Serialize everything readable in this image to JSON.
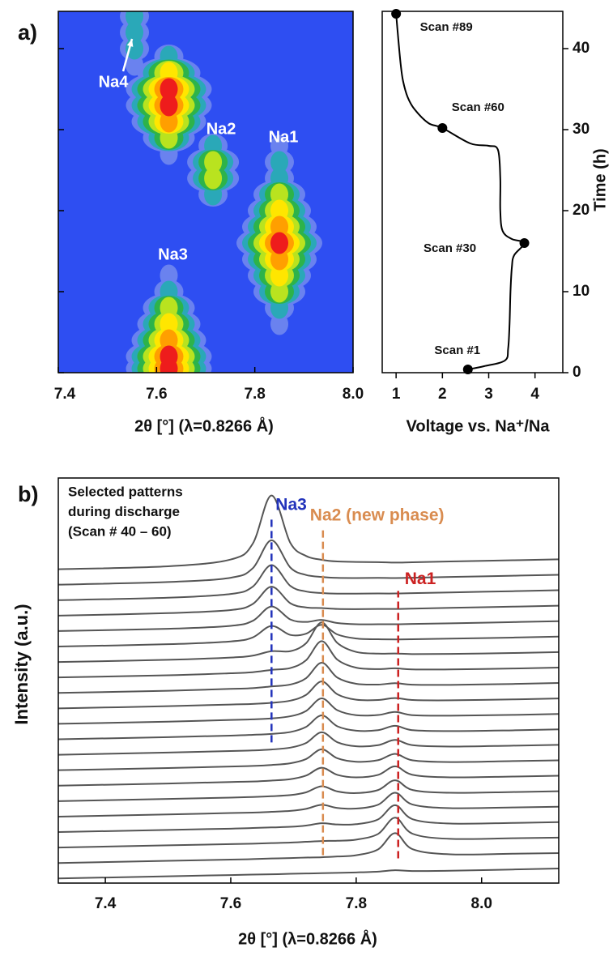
{
  "chart_data": [
    {
      "type": "contour",
      "panel_label": "a)",
      "xlabel": "2θ [°] (λ=0.8266 Å)",
      "xlim": [
        7.4,
        8.0
      ],
      "xticks": [
        7.4,
        7.6,
        7.8,
        {
          "value": 8,
          "label": "8.0"
        }
      ],
      "ylim": [
        0,
        44.6
      ],
      "yticks": [
        0,
        10,
        20,
        30,
        40
      ],
      "background": "#2e4ef2",
      "colors": [
        "#6a82ef",
        "#2aa8b8",
        "#2db34a",
        "#b9e31f",
        "#ffe600",
        "#ff9f00",
        "#ee1c1c"
      ],
      "series": [
        {
          "name": "Na3",
          "x": [
            7.625,
            7.625,
            7.625,
            7.625,
            7.625,
            7.625,
            7.625
          ],
          "y": [
            0.5,
            2,
            4,
            6,
            8,
            10,
            12
          ],
          "values": [
            1,
            1,
            0.9,
            0.7,
            0.5,
            0.35,
            0.15
          ]
        },
        {
          "name": null,
          "x": [
            7.625,
            7.625,
            7.625,
            7.625,
            7.625,
            7.625,
            7.625
          ],
          "y": [
            27,
            29,
            31,
            33,
            35,
            37,
            39
          ],
          "values": [
            0.2,
            0.6,
            0.9,
            1,
            0.95,
            0.7,
            0.3
          ]
        },
        {
          "name": "Na2",
          "x": [
            7.715,
            7.715,
            7.715,
            7.715
          ],
          "y": [
            22,
            24,
            26,
            28
          ],
          "values": [
            0.3,
            0.55,
            0.6,
            0.3
          ]
        },
        {
          "name": "Na1",
          "x": [
            7.85,
            7.85,
            7.85,
            7.85,
            7.85,
            7.85,
            7.85,
            7.85,
            7.85,
            7.85,
            7.85,
            7.85
          ],
          "y": [
            6,
            8,
            10,
            12,
            14,
            16,
            18,
            20,
            22,
            24,
            26,
            28
          ],
          "values": [
            0.15,
            0.35,
            0.5,
            0.65,
            0.85,
            1,
            0.9,
            0.7,
            0.5,
            0.35,
            0.25,
            0.15
          ]
        },
        {
          "name": "Na4",
          "x": [
            7.555,
            7.555,
            7.555,
            7.555
          ],
          "y": [
            38,
            40,
            42,
            44
          ],
          "values": [
            0.1,
            0.25,
            0.3,
            0.3
          ]
        }
      ]
    },
    {
      "type": "line",
      "xlabel": "Voltage vs. Na⁺/Na",
      "ylabel": "Time (h)",
      "xlim": [
        0.7,
        4.6
      ],
      "xticks": [
        1,
        2,
        3,
        4
      ],
      "ylim": [
        0,
        44.6
      ],
      "yticks": [
        0,
        10,
        20,
        30,
        40
      ],
      "color": "#000000",
      "x": [
        2.55,
        2.9,
        3.35,
        3.42,
        3.45,
        3.47,
        3.5,
        3.55,
        3.77,
        3.5,
        3.3,
        3.25,
        3.25,
        3.2,
        3.0,
        2.6,
        2.0,
        1.7,
        1.4,
        1.25,
        1.15,
        1.1,
        1.05,
        1.0
      ],
      "y": [
        0.4,
        0.8,
        1.5,
        3,
        6,
        10,
        13,
        14.5,
        16,
        16.5,
        17.5,
        20,
        24,
        27.5,
        28,
        28.3,
        30.2,
        30.8,
        32.5,
        34,
        36,
        38,
        41,
        44.3
      ],
      "annotations": [
        {
          "text": "Scan #1",
          "x": 2.55,
          "y": 0.4
        },
        {
          "text": "Scan #30",
          "x": 3.77,
          "y": 16
        },
        {
          "text": "Scan #60",
          "x": 2.0,
          "y": 30.2
        },
        {
          "text": "Scan #89",
          "x": 1.0,
          "y": 44.3
        }
      ]
    },
    {
      "type": "stacked_lines",
      "panel_label": "b)",
      "xlabel": "2θ [°] (λ=0.8266 Å)",
      "ylabel": "Intensity (a.u.)",
      "note": [
        "Selected patterns",
        "during discharge",
        "(Scan # 40 – 60)"
      ],
      "xlim": [
        7.325,
        8.123
      ],
      "xticks": [
        7.4,
        7.6,
        7.8,
        {
          "value": 8,
          "label": "8.0"
        }
      ],
      "ylim": [
        -0.3,
        25.9
      ],
      "color": "#555555",
      "x": [
        7.325,
        7.5,
        7.6,
        7.635,
        7.665,
        7.695,
        7.72,
        7.745,
        7.77,
        7.8,
        7.835,
        7.862,
        7.89,
        7.95,
        8.05,
        8.123
      ],
      "series": [
        {
          "values": [
            0,
            0.14,
            0.22,
            0.25,
            0.27,
            0.3,
            0.32,
            0.34,
            0.36,
            0.39,
            0.44,
            0.53,
            0.48,
            0.5,
            0.58,
            0.64
          ]
        },
        {
          "values": [
            0,
            0.14,
            0.22,
            0.25,
            0.29,
            0.32,
            0.35,
            0.37,
            0.42,
            0.5,
            0.88,
            1.93,
            0.89,
            0.56,
            0.6,
            0.64
          ]
        },
        {
          "values": [
            0,
            0.14,
            0.22,
            0.25,
            0.29,
            0.32,
            0.37,
            0.42,
            0.44,
            0.51,
            0.88,
            1.93,
            0.89,
            0.56,
            0.6,
            0.64
          ]
        },
        {
          "values": [
            0,
            0.14,
            0.22,
            0.26,
            0.3,
            0.34,
            0.42,
            0.57,
            0.49,
            0.51,
            0.82,
            1.74,
            0.83,
            0.55,
            0.59,
            0.64
          ]
        },
        {
          "values": [
            0,
            0.14,
            0.23,
            0.26,
            0.31,
            0.37,
            0.5,
            0.76,
            0.56,
            0.52,
            0.77,
            1.54,
            0.78,
            0.55,
            0.59,
            0.64
          ]
        },
        {
          "values": [
            0,
            0.14,
            0.23,
            0.27,
            0.32,
            0.39,
            0.57,
            0.96,
            0.63,
            0.52,
            0.72,
            1.35,
            0.72,
            0.54,
            0.59,
            0.64
          ]
        },
        {
          "values": [
            0,
            0.14,
            0.24,
            0.27,
            0.33,
            0.42,
            0.65,
            1.16,
            0.7,
            0.54,
            0.7,
            1.25,
            0.7,
            0.54,
            0.59,
            0.64
          ]
        },
        {
          "values": [
            0,
            0.14,
            0.24,
            0.28,
            0.34,
            0.45,
            0.72,
            1.35,
            0.77,
            0.55,
            0.65,
            1.06,
            0.64,
            0.53,
            0.59,
            0.64
          ]
        },
        {
          "values": [
            0,
            0.14,
            0.24,
            0.28,
            0.34,
            0.46,
            0.76,
            1.45,
            0.81,
            0.55,
            0.62,
            0.96,
            0.62,
            0.53,
            0.59,
            0.64
          ]
        },
        {
          "values": [
            0,
            0.14,
            0.24,
            0.29,
            0.35,
            0.47,
            0.8,
            1.55,
            0.84,
            0.56,
            0.59,
            0.87,
            0.59,
            0.53,
            0.58,
            0.64
          ]
        },
        {
          "values": [
            0,
            0.14,
            0.25,
            0.29,
            0.35,
            0.49,
            0.83,
            1.65,
            0.88,
            0.56,
            0.57,
            0.77,
            0.56,
            0.53,
            0.58,
            0.64
          ]
        },
        {
          "values": [
            0,
            0.14,
            0.25,
            0.29,
            0.36,
            0.5,
            0.87,
            1.74,
            0.91,
            0.56,
            0.54,
            0.67,
            0.54,
            0.52,
            0.58,
            0.64
          ]
        },
        {
          "values": [
            0,
            0.14,
            0.26,
            0.31,
            0.42,
            0.54,
            0.95,
            1.95,
            0.99,
            0.59,
            0.54,
            0.63,
            0.53,
            0.52,
            0.58,
            0.64
          ]
        },
        {
          "values": [
            0,
            0.14,
            0.27,
            0.34,
            0.49,
            0.61,
            1.11,
            2.35,
            1.15,
            0.63,
            0.54,
            0.59,
            0.52,
            0.52,
            0.58,
            0.64
          ]
        },
        {
          "values": [
            0,
            0.14,
            0.29,
            0.41,
            0.7,
            0.7,
            1.21,
            2.56,
            1.23,
            0.65,
            0.54,
            0.55,
            0.51,
            0.52,
            0.58,
            0.64
          ]
        },
        {
          "values": [
            0,
            0.15,
            0.33,
            0.59,
            1.33,
            0.75,
            0.83,
            1.4,
            0.78,
            0.52,
            0.47,
            0.46,
            0.47,
            0.51,
            0.58,
            0.64
          ]
        },
        {
          "values": [
            0,
            0.15,
            0.34,
            0.66,
            1.59,
            0.75,
            0.59,
            0.72,
            0.52,
            0.44,
            0.44,
            0.44,
            0.46,
            0.5,
            0.58,
            0.64
          ]
        },
        {
          "values": [
            0,
            0.16,
            0.36,
            0.75,
            1.87,
            0.8,
            0.53,
            0.49,
            0.43,
            0.42,
            0.43,
            0.43,
            0.45,
            0.5,
            0.58,
            0.64
          ]
        },
        {
          "values": [
            0,
            0.16,
            0.4,
            0.87,
            2.27,
            0.92,
            0.56,
            0.46,
            0.42,
            0.42,
            0.43,
            0.43,
            0.45,
            0.5,
            0.58,
            0.64
          ]
        },
        {
          "values": [
            0,
            0.17,
            0.45,
            1.06,
            2.87,
            1.11,
            0.63,
            0.5,
            0.44,
            0.43,
            0.44,
            0.43,
            0.45,
            0.5,
            0.58,
            0.64
          ]
        },
        {
          "values": [
            0,
            0.19,
            0.63,
            1.65,
            4.77,
            1.7,
            0.86,
            0.61,
            0.5,
            0.47,
            0.46,
            0.43,
            0.45,
            0.5,
            0.58,
            0.64
          ]
        }
      ],
      "annotations": [
        {
          "text": "Na3",
          "color": "#2233bb",
          "x": 7.665,
          "y": [
            8.8,
            23.4
          ]
        },
        {
          "text": "Na2 (new phase)",
          "color": "#d98c50",
          "x": 7.747,
          "y": [
            1.5,
            22.7
          ]
        },
        {
          "text": "Na1",
          "color": "#cc2222",
          "x": 7.867,
          "y": [
            1.3,
            18.6
          ]
        }
      ]
    }
  ]
}
